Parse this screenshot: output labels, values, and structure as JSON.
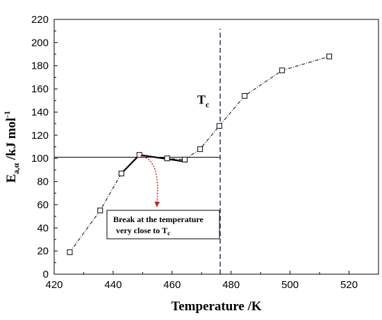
{
  "chart_data": {
    "type": "line",
    "xlabel": "Temperature /K",
    "ylabel_main": "E",
    "ylabel_sub": "a,α",
    "ylabel_rest": " /kJ mol",
    "ylabel_sup": "-1",
    "xlim": [
      420,
      530
    ],
    "ylim": [
      0,
      220
    ],
    "xticks": [
      420,
      440,
      460,
      480,
      500,
      520
    ],
    "yticks": [
      0,
      20,
      40,
      60,
      80,
      100,
      120,
      140,
      160,
      180,
      200,
      220
    ],
    "grid": false,
    "series": [
      {
        "style": "dash-dot line with open square markers",
        "color": "#000000",
        "x": [
          425.3,
          435.6,
          442.8,
          448.9,
          458.3,
          464.3,
          469.5,
          476.0,
          484.6,
          497.3,
          513.3
        ],
        "y": [
          19,
          55,
          87,
          103,
          100,
          99,
          108,
          128,
          154,
          176,
          188
        ]
      }
    ],
    "overlays": {
      "horizontal_line": {
        "y": 101,
        "x_range": [
          420,
          476.3
        ],
        "color": "#000000"
      },
      "vertical_line": {
        "x": 476.3,
        "y_range": [
          0,
          212
        ],
        "color": "#2e3d8f",
        "style": "dashed"
      },
      "vertical_line_label_main": "T",
      "vertical_line_label_sub": "c",
      "break_segments": {
        "x": [
          442.8,
          448.9,
          465.0
        ],
        "y": [
          87,
          103,
          97
        ],
        "color": "#000000"
      }
    },
    "annotation": {
      "line1": "Break at the temperature",
      "line2_main": "very close to T",
      "line2_sub": "c",
      "arrow_from": [
        449.3,
        102
      ],
      "arrow_to": [
        454.8,
        59
      ],
      "arrow_color": "#e02020"
    }
  }
}
